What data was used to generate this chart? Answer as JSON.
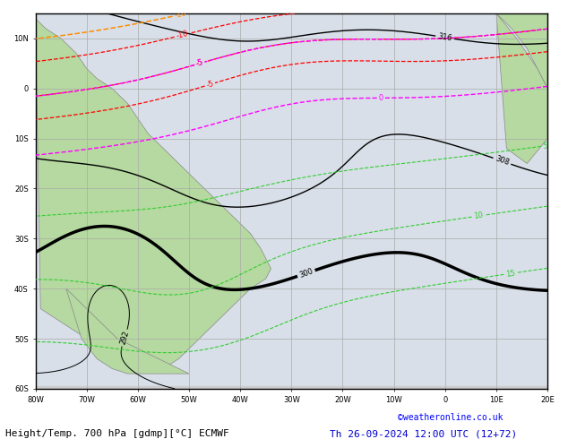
{
  "title": "Height/Temp. 700 hPa [gdmp][°C] ECMWF",
  "subtitle": "Th 26-09-2024 12:00 UTC (12+72)",
  "credit": "©weatheronline.co.uk",
  "background_land": "#b5d9a0",
  "background_ocean": "#d8dfe8",
  "background_gray": "#d4d4d4",
  "grid_color": "#aaaaaa",
  "border_color": "#888888",
  "figsize": [
    6.34,
    4.9
  ],
  "dpi": 100,
  "lon_min": -80,
  "lon_max": 20,
  "lat_min": -60,
  "lat_max": 15,
  "title_fontsize": 8,
  "credit_fontsize": 7,
  "bottom_label_color": "#0000cc"
}
